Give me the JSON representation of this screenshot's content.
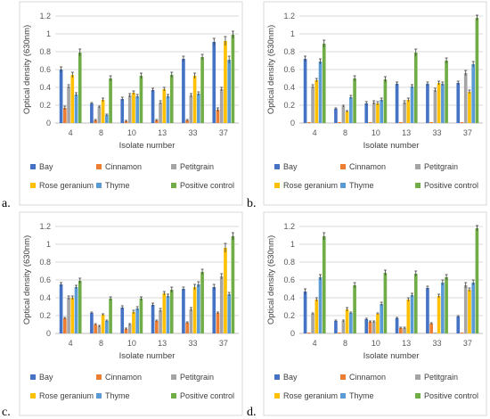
{
  "figure": {
    "series_colors": {
      "Bay": "#4472C4",
      "Cinnamon": "#ED7D31",
      "Petitgrain": "#A5A5A5",
      "Rose geranium": "#FFC000",
      "Thyme": "#5B9BD5",
      "Positive control": "#70AD47"
    }
  },
  "chart_data": [
    {
      "panel": "a.",
      "type": "bar",
      "xlabel": "Isolate number",
      "ylabel": "Optical density (630nm)",
      "ylim": [
        0,
        1.2
      ],
      "yticks": [
        "0",
        "0.2",
        "0.4",
        "0.6",
        "0.8",
        "1",
        "1.2"
      ],
      "grid": true,
      "legend_position": "bottom",
      "categories": [
        "4",
        "8",
        "10",
        "13",
        "33",
        "37"
      ],
      "series": [
        {
          "name": "Bay",
          "values": [
            0.6,
            0.22,
            0.27,
            0.37,
            0.72,
            0.91
          ],
          "errors": [
            0.03,
            0.01,
            0.02,
            0.02,
            0.03,
            0.04
          ]
        },
        {
          "name": "Cinnamon",
          "values": [
            0.17,
            0.03,
            0.02,
            0.03,
            0.03,
            0.15
          ],
          "errors": [
            0.02,
            0.01,
            0.01,
            0.01,
            0.01,
            0.02
          ]
        },
        {
          "name": "Petitgrain",
          "values": [
            0.41,
            0.18,
            0.31,
            0.23,
            0.31,
            0.38
          ],
          "errors": [
            0.02,
            0.01,
            0.02,
            0.02,
            0.02,
            0.02
          ]
        },
        {
          "name": "Rose geranium",
          "values": [
            0.54,
            0.26,
            0.34,
            0.38,
            0.53,
            0.92
          ],
          "errors": [
            0.03,
            0.02,
            0.02,
            0.02,
            0.03,
            0.05
          ]
        },
        {
          "name": "Thyme",
          "values": [
            0.32,
            0.09,
            0.3,
            0.3,
            0.33,
            0.71
          ],
          "errors": [
            0.02,
            0.01,
            0.02,
            0.02,
            0.02,
            0.04
          ]
        },
        {
          "name": "Positive control",
          "values": [
            0.79,
            0.5,
            0.53,
            0.54,
            0.74,
            0.99
          ],
          "errors": [
            0.04,
            0.03,
            0.03,
            0.03,
            0.03,
            0.04
          ]
        }
      ]
    },
    {
      "panel": "b.",
      "type": "bar",
      "xlabel": "Isolate number",
      "ylabel": "Optical density (630nm)",
      "ylim": [
        0,
        1.2
      ],
      "yticks": [
        "0",
        "0.2",
        "0.4",
        "0.6",
        "0.8",
        "1",
        "1.2"
      ],
      "grid": true,
      "legend_position": "bottom",
      "categories": [
        "4",
        "8",
        "10",
        "13",
        "33",
        "37"
      ],
      "series": [
        {
          "name": "Bay",
          "values": [
            0.72,
            0.16,
            0.22,
            0.44,
            0.44,
            0.45
          ],
          "errors": [
            0.03,
            0.01,
            0.02,
            0.02,
            0.02,
            0.02
          ]
        },
        {
          "name": "Cinnamon",
          "values": [
            0.01,
            0.01,
            0.01,
            0.01,
            0.01,
            0.01
          ],
          "errors": [
            0.0,
            0.0,
            0.0,
            0.0,
            0.0,
            0.0
          ]
        },
        {
          "name": "Petitgrain",
          "values": [
            0.41,
            0.19,
            0.23,
            0.23,
            0.37,
            0.56
          ],
          "errors": [
            0.02,
            0.01,
            0.02,
            0.02,
            0.02,
            0.03
          ]
        },
        {
          "name": "Rose geranium",
          "values": [
            0.48,
            0.13,
            0.22,
            0.26,
            0.45,
            0.35
          ],
          "errors": [
            0.02,
            0.01,
            0.02,
            0.02,
            0.02,
            0.02
          ]
        },
        {
          "name": "Thyme",
          "values": [
            0.69,
            0.29,
            0.26,
            0.41,
            0.44,
            0.66
          ],
          "errors": [
            0.03,
            0.02,
            0.02,
            0.02,
            0.02,
            0.03
          ]
        },
        {
          "name": "Positive control",
          "values": [
            0.89,
            0.5,
            0.49,
            0.79,
            0.7,
            1.18
          ],
          "errors": [
            0.04,
            0.03,
            0.03,
            0.04,
            0.03,
            0.03
          ]
        }
      ]
    },
    {
      "panel": "c.",
      "type": "bar",
      "xlabel": "Isolate number",
      "ylabel": "Optical density (630nm)",
      "ylim": [
        0,
        1.2
      ],
      "yticks": [
        "0",
        "0.2",
        "0.4",
        "0.6",
        "0.8",
        "1",
        "1.2"
      ],
      "grid": true,
      "legend_position": "bottom",
      "categories": [
        "4",
        "8",
        "10",
        "13",
        "33",
        "37"
      ],
      "series": [
        {
          "name": "Bay",
          "values": [
            0.55,
            0.23,
            0.29,
            0.32,
            0.5,
            0.52
          ],
          "errors": [
            0.02,
            0.01,
            0.02,
            0.02,
            0.02,
            0.03
          ]
        },
        {
          "name": "Cinnamon",
          "values": [
            0.17,
            0.1,
            0.05,
            0.14,
            0.12,
            0.23
          ],
          "errors": [
            0.01,
            0.01,
            0.01,
            0.01,
            0.01,
            0.01
          ]
        },
        {
          "name": "Petitgrain",
          "values": [
            0.4,
            0.08,
            0.1,
            0.26,
            0.27,
            0.64
          ],
          "errors": [
            0.02,
            0.01,
            0.01,
            0.02,
            0.02,
            0.03
          ]
        },
        {
          "name": "Rose geranium",
          "values": [
            0.4,
            0.21,
            0.24,
            0.45,
            0.52,
            0.96
          ],
          "errors": [
            0.02,
            0.01,
            0.02,
            0.02,
            0.03,
            0.05
          ]
        },
        {
          "name": "Thyme",
          "values": [
            0.52,
            0.14,
            0.28,
            0.42,
            0.55,
            0.44
          ],
          "errors": [
            0.02,
            0.01,
            0.02,
            0.02,
            0.03,
            0.02
          ]
        },
        {
          "name": "Positive control",
          "values": [
            0.59,
            0.39,
            0.39,
            0.49,
            0.69,
            1.09
          ],
          "errors": [
            0.03,
            0.02,
            0.02,
            0.03,
            0.03,
            0.04
          ]
        }
      ]
    },
    {
      "panel": "d.",
      "type": "bar",
      "xlabel": "Isolate number",
      "ylabel": "Optical density (630nm)",
      "ylim": [
        0,
        1.2
      ],
      "yticks": [
        "0",
        "0.2",
        "0.4",
        "0.6",
        "0.8",
        "1",
        "1.2"
      ],
      "grid": true,
      "legend_position": "bottom",
      "categories": [
        "4",
        "8",
        "10",
        "13",
        "33",
        "37"
      ],
      "series": [
        {
          "name": "Bay",
          "values": [
            0.47,
            0.14,
            0.16,
            0.17,
            0.51,
            0.19
          ],
          "errors": [
            0.03,
            0.01,
            0.01,
            0.01,
            0.02,
            0.01
          ]
        },
        {
          "name": "Cinnamon",
          "values": [
            0.01,
            0.01,
            0.13,
            0.06,
            0.11,
            0.01
          ],
          "errors": [
            0.0,
            0.0,
            0.01,
            0.01,
            0.01,
            0.0
          ]
        },
        {
          "name": "Petitgrain",
          "values": [
            0.22,
            0.14,
            0.13,
            0.06,
            0.01,
            0.54
          ],
          "errors": [
            0.01,
            0.01,
            0.01,
            0.01,
            0.0,
            0.03
          ]
        },
        {
          "name": "Rose geranium",
          "values": [
            0.38,
            0.27,
            0.22,
            0.38,
            0.42,
            0.49
          ],
          "errors": [
            0.02,
            0.02,
            0.01,
            0.02,
            0.02,
            0.02
          ]
        },
        {
          "name": "Thyme",
          "values": [
            0.63,
            0.23,
            0.33,
            0.43,
            0.57,
            0.57
          ],
          "errors": [
            0.03,
            0.01,
            0.02,
            0.02,
            0.03,
            0.03
          ]
        },
        {
          "name": "Positive control",
          "values": [
            1.09,
            0.54,
            0.68,
            0.67,
            0.63,
            1.18
          ],
          "errors": [
            0.04,
            0.03,
            0.03,
            0.03,
            0.03,
            0.03
          ]
        }
      ]
    }
  ]
}
